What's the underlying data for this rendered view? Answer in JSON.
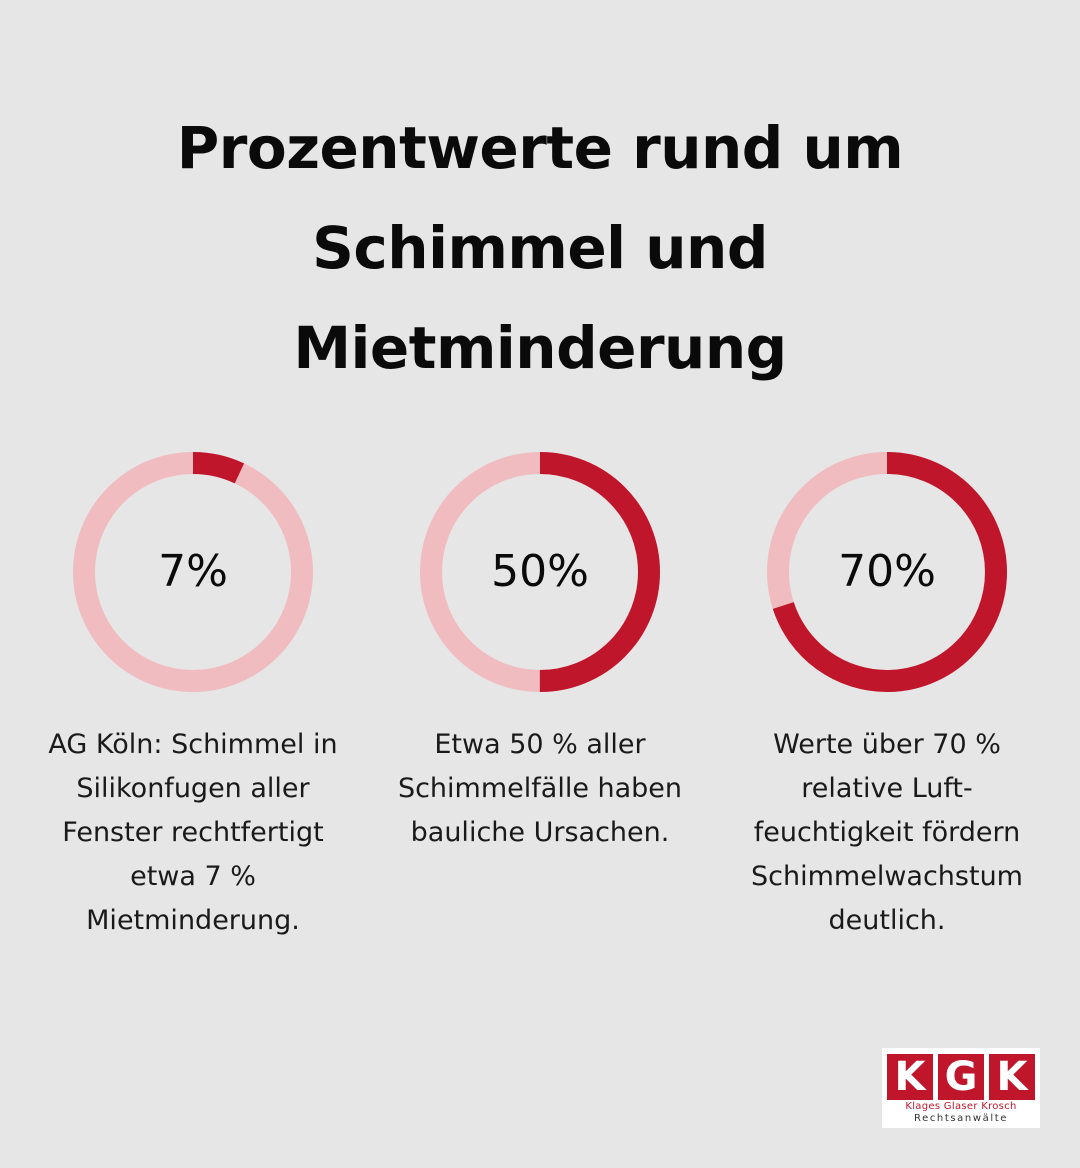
{
  "header": {
    "title_lines": [
      "Prozentwerte rund um",
      "Schimmel und",
      "Mietminderung"
    ]
  },
  "colors": {
    "background": "#e6e6e6",
    "accent": "#c0162c",
    "track": "#f0bcc0",
    "text": "#111111"
  },
  "chart_data": [
    {
      "type": "donut",
      "value": 7,
      "max": 100,
      "center_label": "7%",
      "caption": "AG Köln: Schimmel in\nSilikonfugen aller\nFenster rechtfertigt\netwa 7 %\nMietminderung."
    },
    {
      "type": "donut",
      "value": 50,
      "max": 100,
      "center_label": "50%",
      "caption": "Etwa 50 % aller\nSchimmelfälle haben\nbauliche Ursachen."
    },
    {
      "type": "donut",
      "value": 70,
      "max": 100,
      "center_label": "70%",
      "caption": "Werte über 70 %\nrelative Luft-\nfeuchtigkeit fördern\nSchimmelwachstum\ndeutlich."
    }
  ],
  "logo": {
    "letters": [
      "K",
      "G",
      "K"
    ],
    "names": "Klages Glaser Krosch",
    "subtitle": "Rechtsanwälte"
  }
}
